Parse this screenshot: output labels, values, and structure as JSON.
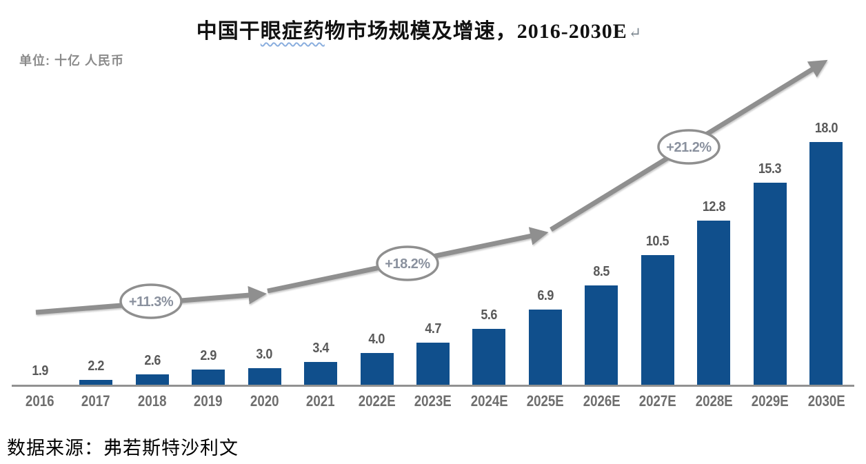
{
  "title": {
    "part1": "中国干",
    "wavy_part": "眼症药",
    "part3": "物市场规模及增速，",
    "year_range": "2016-2030E",
    "return_mark": "↵",
    "full": "中国干眼症药物市场规模及增速，2016-2030E"
  },
  "unit_label": "单位: 十亿 人民币",
  "source_line": "数据来源：弗若斯特沙利文",
  "colors": {
    "bar": "#104f8c",
    "arrow": "#8f8f8f",
    "ellipse_border": "#8f8f8f",
    "annotation_text": "#8a919e",
    "value_label": "#595959",
    "axis_label": "#6e6e6e",
    "axis_line": "#919191",
    "unit_label": "#8a8a8a",
    "squiggle": "#8aaede"
  },
  "chart_data": {
    "type": "bar",
    "title": "中国干眼症药物市场规模及增速，2016-2030E",
    "unit": "十亿 人民币",
    "xlabel": "",
    "ylabel": "",
    "grid": false,
    "legend": false,
    "categories": [
      "2016",
      "2017",
      "2018",
      "2019",
      "2020",
      "2021",
      "2022E",
      "2023E",
      "2024E",
      "2025E",
      "2026E",
      "2027E",
      "2028E",
      "2029E",
      "2030E"
    ],
    "values": [
      1.9,
      2.2,
      2.6,
      2.9,
      3.0,
      3.4,
      4.0,
      4.7,
      5.6,
      6.9,
      8.5,
      10.5,
      12.8,
      15.3,
      18.0
    ],
    "value_labels": [
      "1.9",
      "2.2",
      "2.6",
      "2.9",
      "3.0",
      "3.4",
      "4.0",
      "4.7",
      "5.6",
      "6.9",
      "8.5",
      "10.5",
      "12.8",
      "15.3",
      "18.0"
    ],
    "baseline_value": 1.9,
    "growth_annotations": [
      {
        "label": "+11.3%"
      },
      {
        "label": "+18.2%"
      },
      {
        "label": "+21.2%"
      }
    ]
  }
}
